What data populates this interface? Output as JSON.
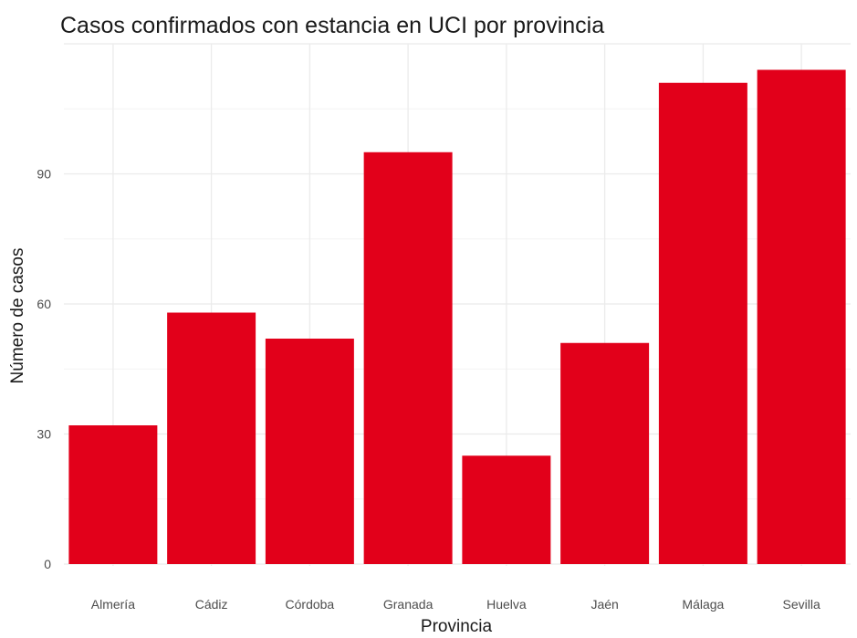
{
  "chart_data": {
    "type": "bar",
    "title": "Casos confirmados con estancia en UCI por provincia",
    "xlabel": "Provincia",
    "ylabel": "Número de casos",
    "categories": [
      "Almería",
      "Cádiz",
      "Córdoba",
      "Granada",
      "Huelva",
      "Jaén",
      "Málaga",
      "Sevilla"
    ],
    "values": [
      32,
      58,
      52,
      95,
      25,
      51,
      111,
      114
    ],
    "yticks": [
      0,
      30,
      60,
      90
    ],
    "ylim": [
      0,
      120
    ],
    "bar_color": "#e2001a",
    "grid": true,
    "legend": "none"
  }
}
